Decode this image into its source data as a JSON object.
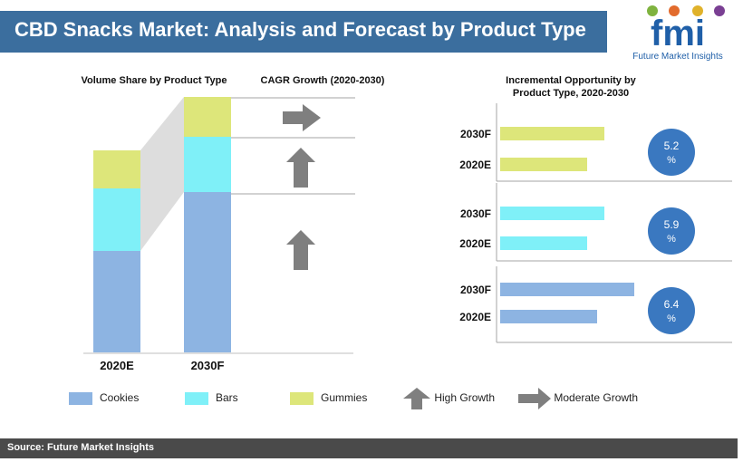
{
  "header": {
    "title": "CBD Snacks Market: Analysis and Forecast by Product Type",
    "logo_text": "fmi",
    "logo_subtitle": "Future Market Insights"
  },
  "panels": {
    "volume_title": "Volume Share by Product Type",
    "cagr_title": "CAGR Growth (2020-2030)",
    "incremental_title_line1": "Incremental Opportunity by",
    "incremental_title_line2": "Product Type, 2020-2030"
  },
  "colors": {
    "header": "#3b6e9e",
    "cookies": "#8db4e2",
    "bars": "#7ff0f8",
    "gummies": "#dde67a",
    "arrow": "#7f7f7f",
    "circle": "#3a78c0",
    "footer": "#4a4a4a"
  },
  "chart_data": [
    {
      "type": "bar",
      "stacked": true,
      "categories": [
        "2020E",
        "2030F"
      ],
      "series": [
        {
          "name": "Cookies",
          "values": [
            112,
            177
          ]
        },
        {
          "name": "Bars",
          "values": [
            69,
            61
          ]
        },
        {
          "name": "Gummies",
          "values": [
            42,
            44
          ]
        }
      ]
    },
    {
      "type": "bar",
      "orientation": "horizontal",
      "segments": [
        {
          "series": "Gummies",
          "arrow": "moderate",
          "circle_value": "5.2",
          "circle_unit": "%",
          "bars": [
            {
              "label": "2030F",
              "value": 115
            },
            {
              "label": "2020E",
              "value": 96
            }
          ]
        },
        {
          "series": "Bars",
          "arrow": "high",
          "circle_value": "5.9",
          "circle_unit": "%",
          "bars": [
            {
              "label": "2030F",
              "value": 115
            },
            {
              "label": "2020E",
              "value": 96
            }
          ]
        },
        {
          "series": "Cookies",
          "arrow": "high",
          "circle_value": "6.4",
          "circle_unit": "%",
          "bars": [
            {
              "label": "2030F",
              "value": 148
            },
            {
              "label": "2020E",
              "value": 107
            }
          ]
        }
      ]
    }
  ],
  "legend": {
    "cookies": "Cookies",
    "bars": "Bars",
    "gummies": "Gummies",
    "high_growth": "High Growth",
    "moderate_growth": "Moderate Growth"
  },
  "footer": {
    "source": "Source: Future Market Insights"
  }
}
